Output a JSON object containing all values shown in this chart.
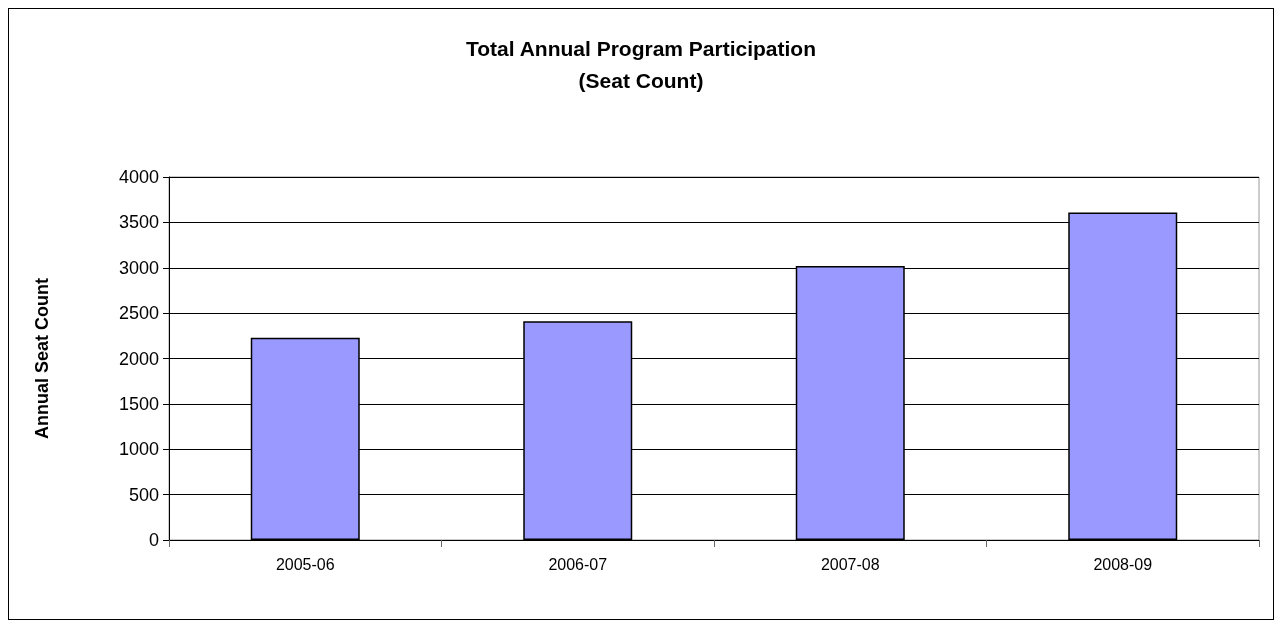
{
  "chart_data": {
    "type": "bar",
    "title": "Total Annual Program Participation\n(Seat Count)",
    "ylabel": "Annual Seat Count",
    "categories": [
      "2005-06",
      "2006-07",
      "2007-08",
      "2008-09"
    ],
    "values": [
      2230,
      2410,
      3020,
      3610
    ],
    "color": "#9999ff",
    "ylim": [
      0,
      4000
    ],
    "yticks": [
      0,
      500,
      1000,
      1500,
      2000,
      2500,
      3000,
      3500,
      4000
    ],
    "grid": "y"
  }
}
